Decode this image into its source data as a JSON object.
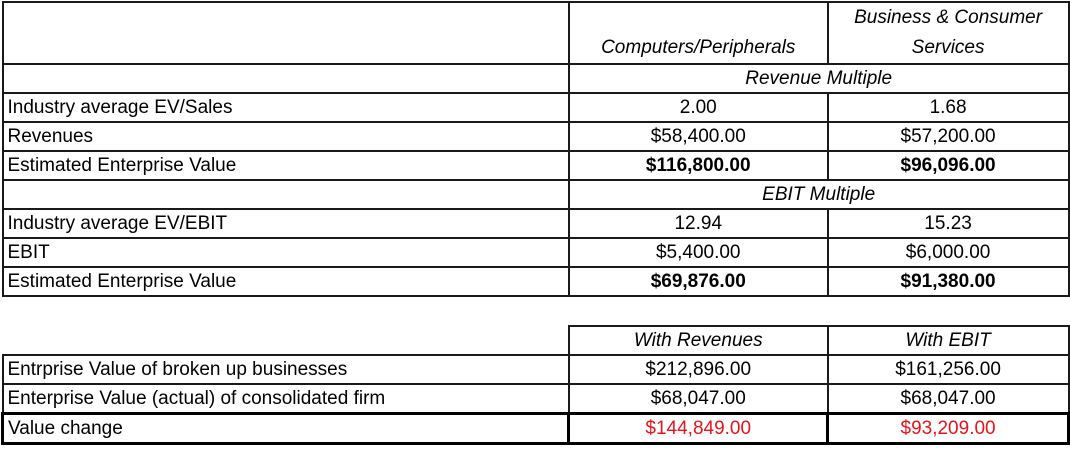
{
  "header": {
    "col1": "Computers/Peripherals",
    "col2_line1": "Business & Consumer",
    "col2_line2": "Services"
  },
  "revenue_section": {
    "title": "Revenue Multiple",
    "rows": [
      {
        "label": "Industry average EV/Sales",
        "a": "2.00",
        "b": "1.68"
      },
      {
        "label": "Revenues",
        "a": "$58,400.00",
        "b": "$57,200.00"
      },
      {
        "label": "Estimated Enterprise Value",
        "a": "$116,800.00",
        "b": "$96,096.00"
      }
    ]
  },
  "ebit_section": {
    "title": "EBIT Multiple",
    "rows": [
      {
        "label": "Industry average EV/EBIT",
        "a": "12.94",
        "b": "15.23"
      },
      {
        "label": "EBIT",
        "a": "$5,400.00",
        "b": "$6,000.00"
      },
      {
        "label": "Estimated Enterprise Value",
        "a": "$69,876.00",
        "b": "$91,380.00"
      }
    ]
  },
  "summary": {
    "col_a": "With Revenues",
    "col_b": "With EBIT",
    "rows": [
      {
        "label": "Entrprise Value of broken up businesses",
        "a": "$212,896.00",
        "b": "$161,256.00"
      },
      {
        "label": "Enterprise Value (actual) of consolidated firm",
        "a": "$68,047.00",
        "b": "$68,047.00"
      },
      {
        "label": "Value change",
        "a": "$144,849.00",
        "b": "$93,209.00"
      }
    ]
  },
  "colors": {
    "highlight": "#e8141b"
  }
}
